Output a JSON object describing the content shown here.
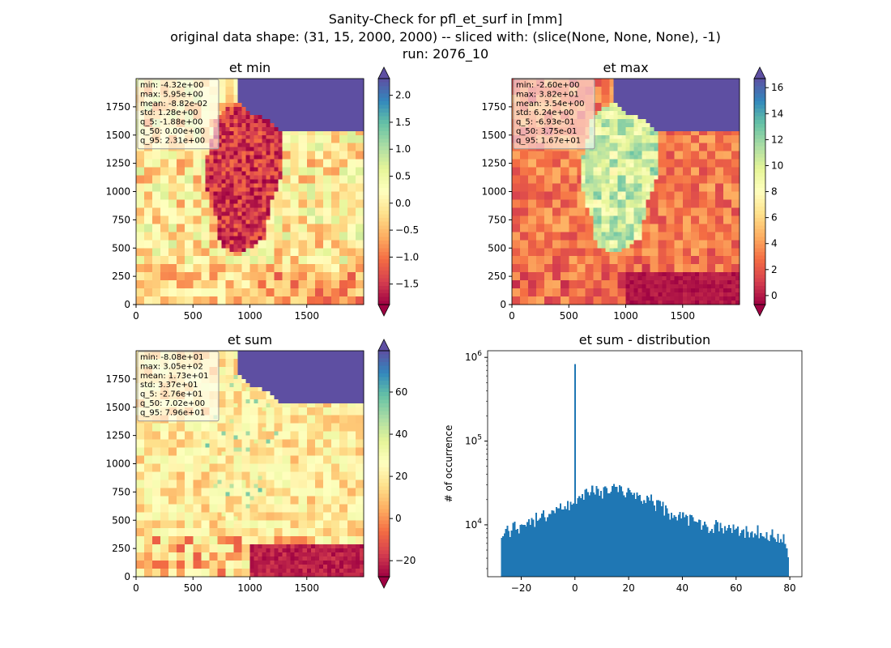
{
  "figure": {
    "title_lines": [
      "Sanity-Check for pfl_et_surf in [mm]",
      "original data shape: (31, 15, 2000, 2000) -- sliced with: (slice(None, None, None), -1)",
      "run: 2076_10"
    ]
  },
  "chart_data": [
    {
      "type": "heatmap",
      "title": "et min",
      "colormap": "Spectral",
      "colorbar_extend": "both",
      "xlim": [
        0,
        2000
      ],
      "ylim": [
        0,
        2000
      ],
      "xticks": [
        0,
        500,
        1000,
        1500
      ],
      "yticks": [
        0,
        250,
        500,
        750,
        1000,
        1250,
        1500,
        1750
      ],
      "clim": [
        -1.88,
        2.31
      ],
      "colorbar_ticks": [
        -1.5,
        -1.0,
        -0.5,
        0.0,
        0.5,
        1.0,
        1.5,
        2.0
      ],
      "colorbar_tick_labels": [
        "−1.5",
        "−1.0",
        "−0.5",
        "0.0",
        "0.5",
        "1.0",
        "1.5",
        "2.0"
      ],
      "stats_box": [
        "min: -4.32e+00",
        "max: 5.95e+00",
        "mean: -8.82e-02",
        "std: 1.28e+00",
        "q_5: -1.88e+00",
        "q_50: 0.00e+00",
        "q_95: 2.31e+00"
      ]
    },
    {
      "type": "heatmap",
      "title": "et max",
      "colormap": "Spectral",
      "colorbar_extend": "both",
      "xlim": [
        0,
        2000
      ],
      "ylim": [
        0,
        2000
      ],
      "xticks": [
        0,
        500,
        1000,
        1500
      ],
      "yticks": [
        0,
        250,
        500,
        750,
        1000,
        1250,
        1500,
        1750
      ],
      "clim": [
        -0.693,
        16.7
      ],
      "colorbar_ticks": [
        0,
        2,
        4,
        6,
        8,
        10,
        12,
        14,
        16
      ],
      "colorbar_tick_labels": [
        "0",
        "2",
        "4",
        "6",
        "8",
        "10",
        "12",
        "14",
        "16"
      ],
      "stats_box": [
        "min: -2.60e+00",
        "max: 3.82e+01",
        "mean: 3.54e+00",
        "std: 6.24e+00",
        "q_5: -6.93e-01",
        "q_50: 3.75e-01",
        "q_95: 1.67e+01"
      ]
    },
    {
      "type": "heatmap",
      "title": "et sum",
      "colormap": "Spectral",
      "colorbar_extend": "both",
      "xlim": [
        0,
        2000
      ],
      "ylim": [
        0,
        2000
      ],
      "xticks": [
        0,
        500,
        1000,
        1500
      ],
      "yticks": [
        0,
        250,
        500,
        750,
        1000,
        1250,
        1500,
        1750
      ],
      "clim": [
        -27.6,
        79.6
      ],
      "colorbar_ticks": [
        -20,
        0,
        20,
        40,
        60
      ],
      "colorbar_tick_labels": [
        "−20",
        "0",
        "20",
        "40",
        "60"
      ],
      "stats_box": [
        "min: -8.08e+01",
        "max: 3.05e+02",
        "mean: 1.73e+01",
        "std: 3.37e+01",
        "q_5: -2.76e+01",
        "q_50: 7.02e+00",
        "q_95: 7.96e+01"
      ]
    },
    {
      "type": "bar",
      "subtype": "histogram",
      "title": "et sum - distribution",
      "ylabel": "# of occurrence",
      "xlabel": "",
      "yscale": "log",
      "bar_color": "#1f77b4",
      "xlim": [
        -32.5,
        84.5
      ],
      "ylim": [
        2400,
        1200000
      ],
      "xticks": [
        -20,
        0,
        20,
        40,
        60,
        80
      ],
      "xtick_labels": [
        "−20",
        "0",
        "20",
        "40",
        "60",
        "80"
      ],
      "yticks_major": [
        10000,
        100000,
        1000000
      ],
      "ytick_labels": [
        {
          "base": "10",
          "exp": "4"
        },
        {
          "base": "10",
          "exp": "5"
        },
        {
          "base": "10",
          "exp": "6"
        }
      ],
      "bin_range": [
        -27.6,
        79.6
      ],
      "spike": {
        "x": 0,
        "count": 830000
      },
      "envelope": [
        [
          -27.6,
          7800
        ],
        [
          -20,
          10000
        ],
        [
          -10,
          13000
        ],
        [
          0,
          19000
        ],
        [
          5,
          25000
        ],
        [
          15,
          26000
        ],
        [
          25,
          22000
        ],
        [
          35,
          14000
        ],
        [
          45,
          10500
        ],
        [
          55,
          9200
        ],
        [
          65,
          8500
        ],
        [
          75,
          7800
        ],
        [
          78,
          6500
        ],
        [
          79.6,
          4000
        ]
      ]
    }
  ]
}
